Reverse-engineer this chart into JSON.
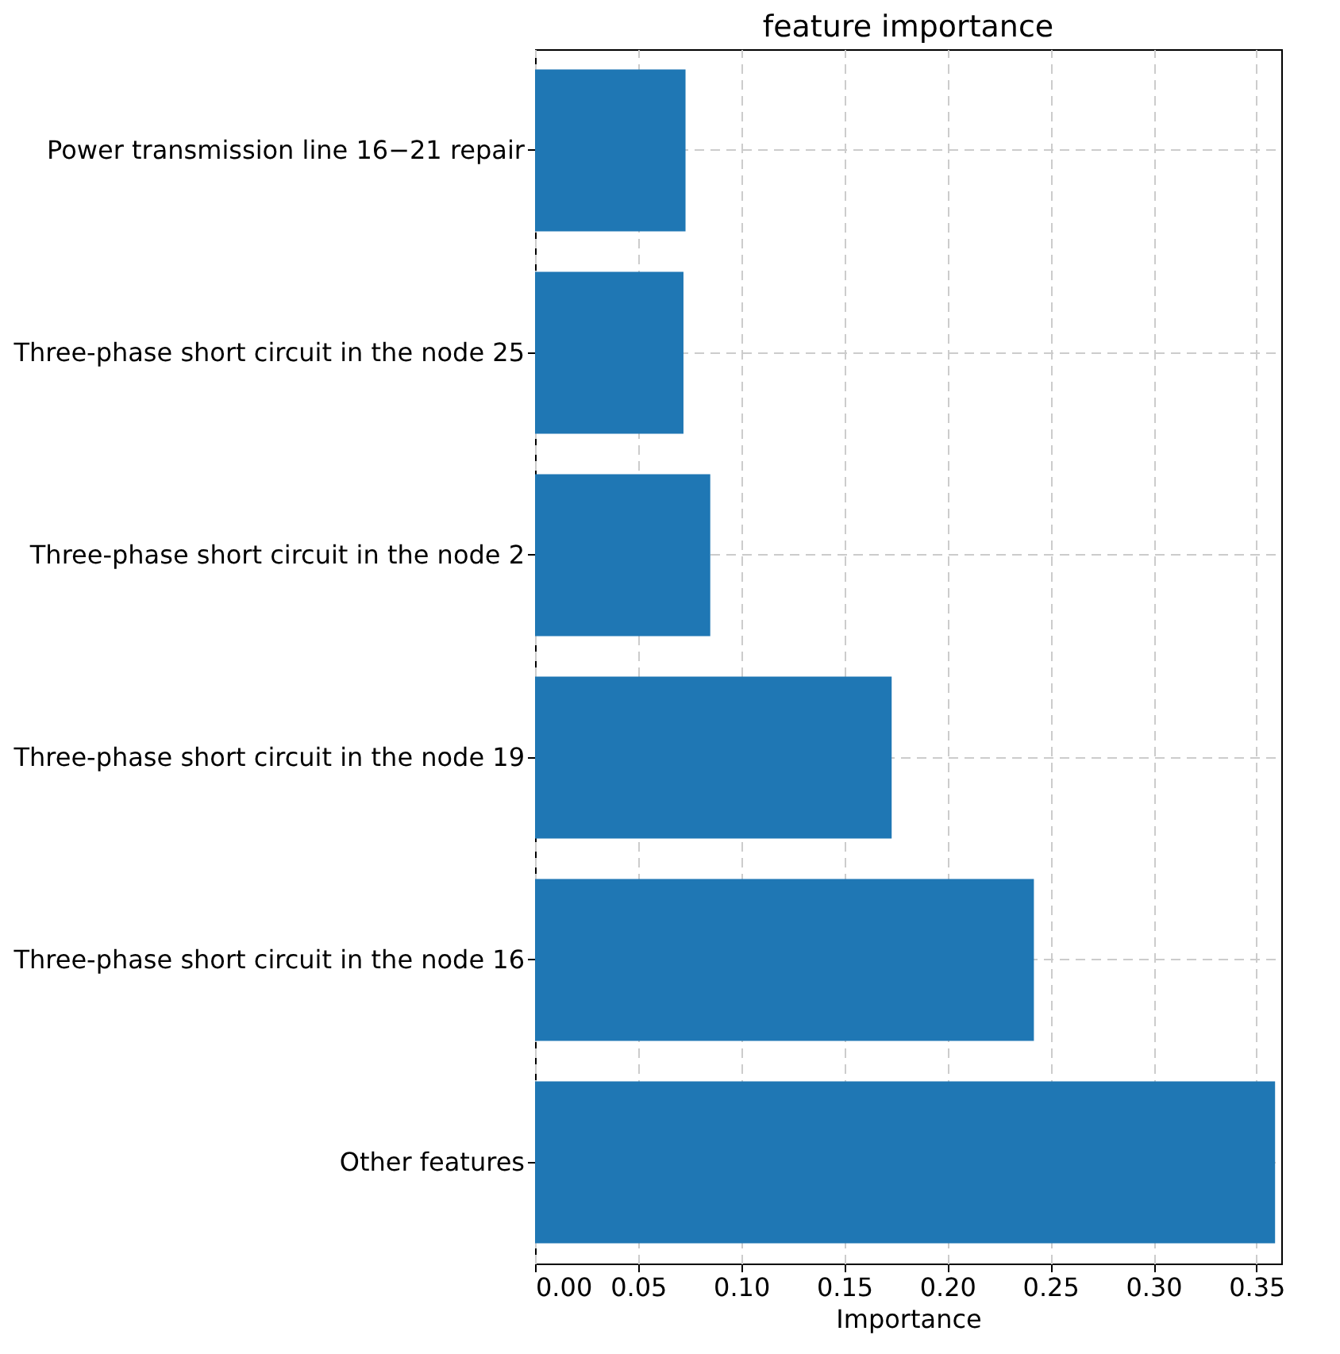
{
  "chart_data": {
    "type": "bar",
    "orientation": "horizontal",
    "title": "feature importance",
    "xlabel": "Importance",
    "categories": [
      "Power transmission line 16−21 repair",
      "Three-phase short circuit in the node 25",
      "Three-phase short circuit in the node 2",
      "Three-phase short circuit in the node 19",
      "Three-phase short circuit in the node 16",
      "Other features"
    ],
    "values": [
      0.073,
      0.072,
      0.085,
      0.173,
      0.242,
      0.359
    ],
    "color": "#1f77b4",
    "xlim": [
      0,
      0.362
    ],
    "xticks": [
      {
        "value": 0,
        "label": "0.00"
      },
      {
        "value": 0.05,
        "label": "0.05"
      },
      {
        "value": 0.1,
        "label": "0.10"
      },
      {
        "value": 0.15,
        "label": "0.15"
      },
      {
        "value": 0.2,
        "label": "0.20"
      },
      {
        "value": 0.25,
        "label": "0.25"
      },
      {
        "value": 0.3,
        "label": "0.30"
      },
      {
        "value": 0.35,
        "label": "0.35"
      }
    ],
    "grid": true
  }
}
